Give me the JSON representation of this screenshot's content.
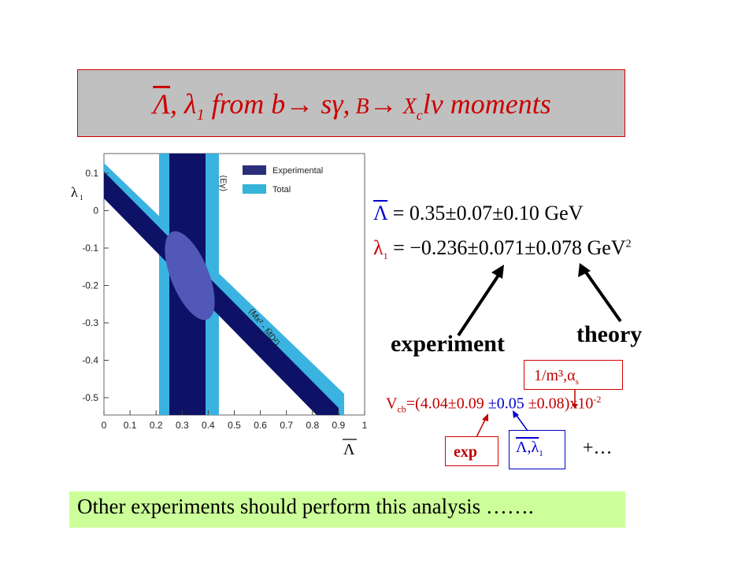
{
  "title": {
    "lambda_bar": "Λ",
    "sep1": ",",
    "lambda1": "λ",
    "lambda1_sub": "1",
    "from_text": " from b",
    "arrow1": "→",
    "s_gamma": " sγ,",
    "B": " B",
    "arrow2": "→",
    "X": " X",
    "X_sub": "c",
    "l_nu": "lν",
    "moments": " moments"
  },
  "plot": {
    "y_axis_symbol": "λ",
    "y_axis_sub": "1",
    "x_axis_symbol": "Λ",
    "y_ticks": [
      "0.1",
      "0",
      "-0.1",
      "-0.2",
      "-0.3",
      "-0.4",
      "-0.5"
    ],
    "x_ticks": [
      "0",
      "0.1",
      "0.2",
      "0.3",
      "0.4",
      "0.5",
      "0.6",
      "0.7",
      "0.8",
      "0.9",
      "1"
    ],
    "legend": [
      {
        "label": "Experimental",
        "color": "#2b2e7a"
      },
      {
        "label": "Total",
        "color": "#35b3d9"
      }
    ],
    "band_label_vertical": "⟨Eγ⟩",
    "band_label_diagonal": "⟨Mx² - M̄D²⟩",
    "colors": {
      "dark_band": "#0d1266",
      "light_band": "#3bb3e0",
      "ellipse": "#5158b8"
    }
  },
  "results": {
    "lambda_bar_symbol": "Λ",
    "line1": "= 0.35±0.07±0.10 GeV",
    "lambda1_symbol": "λ",
    "lambda1_sub": "1",
    "line2": "= −0.236±0.071±0.078 GeV",
    "line2_sup": "2"
  },
  "labels": {
    "experiment": "experiment",
    "theory": "theory"
  },
  "vcb": {
    "V": "V",
    "V_sub": "cb",
    "eq": "=(",
    "val": "4.04",
    "err1": "±0.09",
    "err2": "±0.05",
    "err3": "±0.08",
    "tail": ")x10",
    "exp_sup": "-2"
  },
  "boxes": {
    "theory_box_text": "1/m³,α",
    "theory_box_sub": "s",
    "exp_box_text": "exp",
    "lambda_box_text": "Λ,λ",
    "lambda_box_sub": "1",
    "plus_text": "+…"
  },
  "bottom": {
    "text": "Other experiments should perform this analysis ……."
  }
}
